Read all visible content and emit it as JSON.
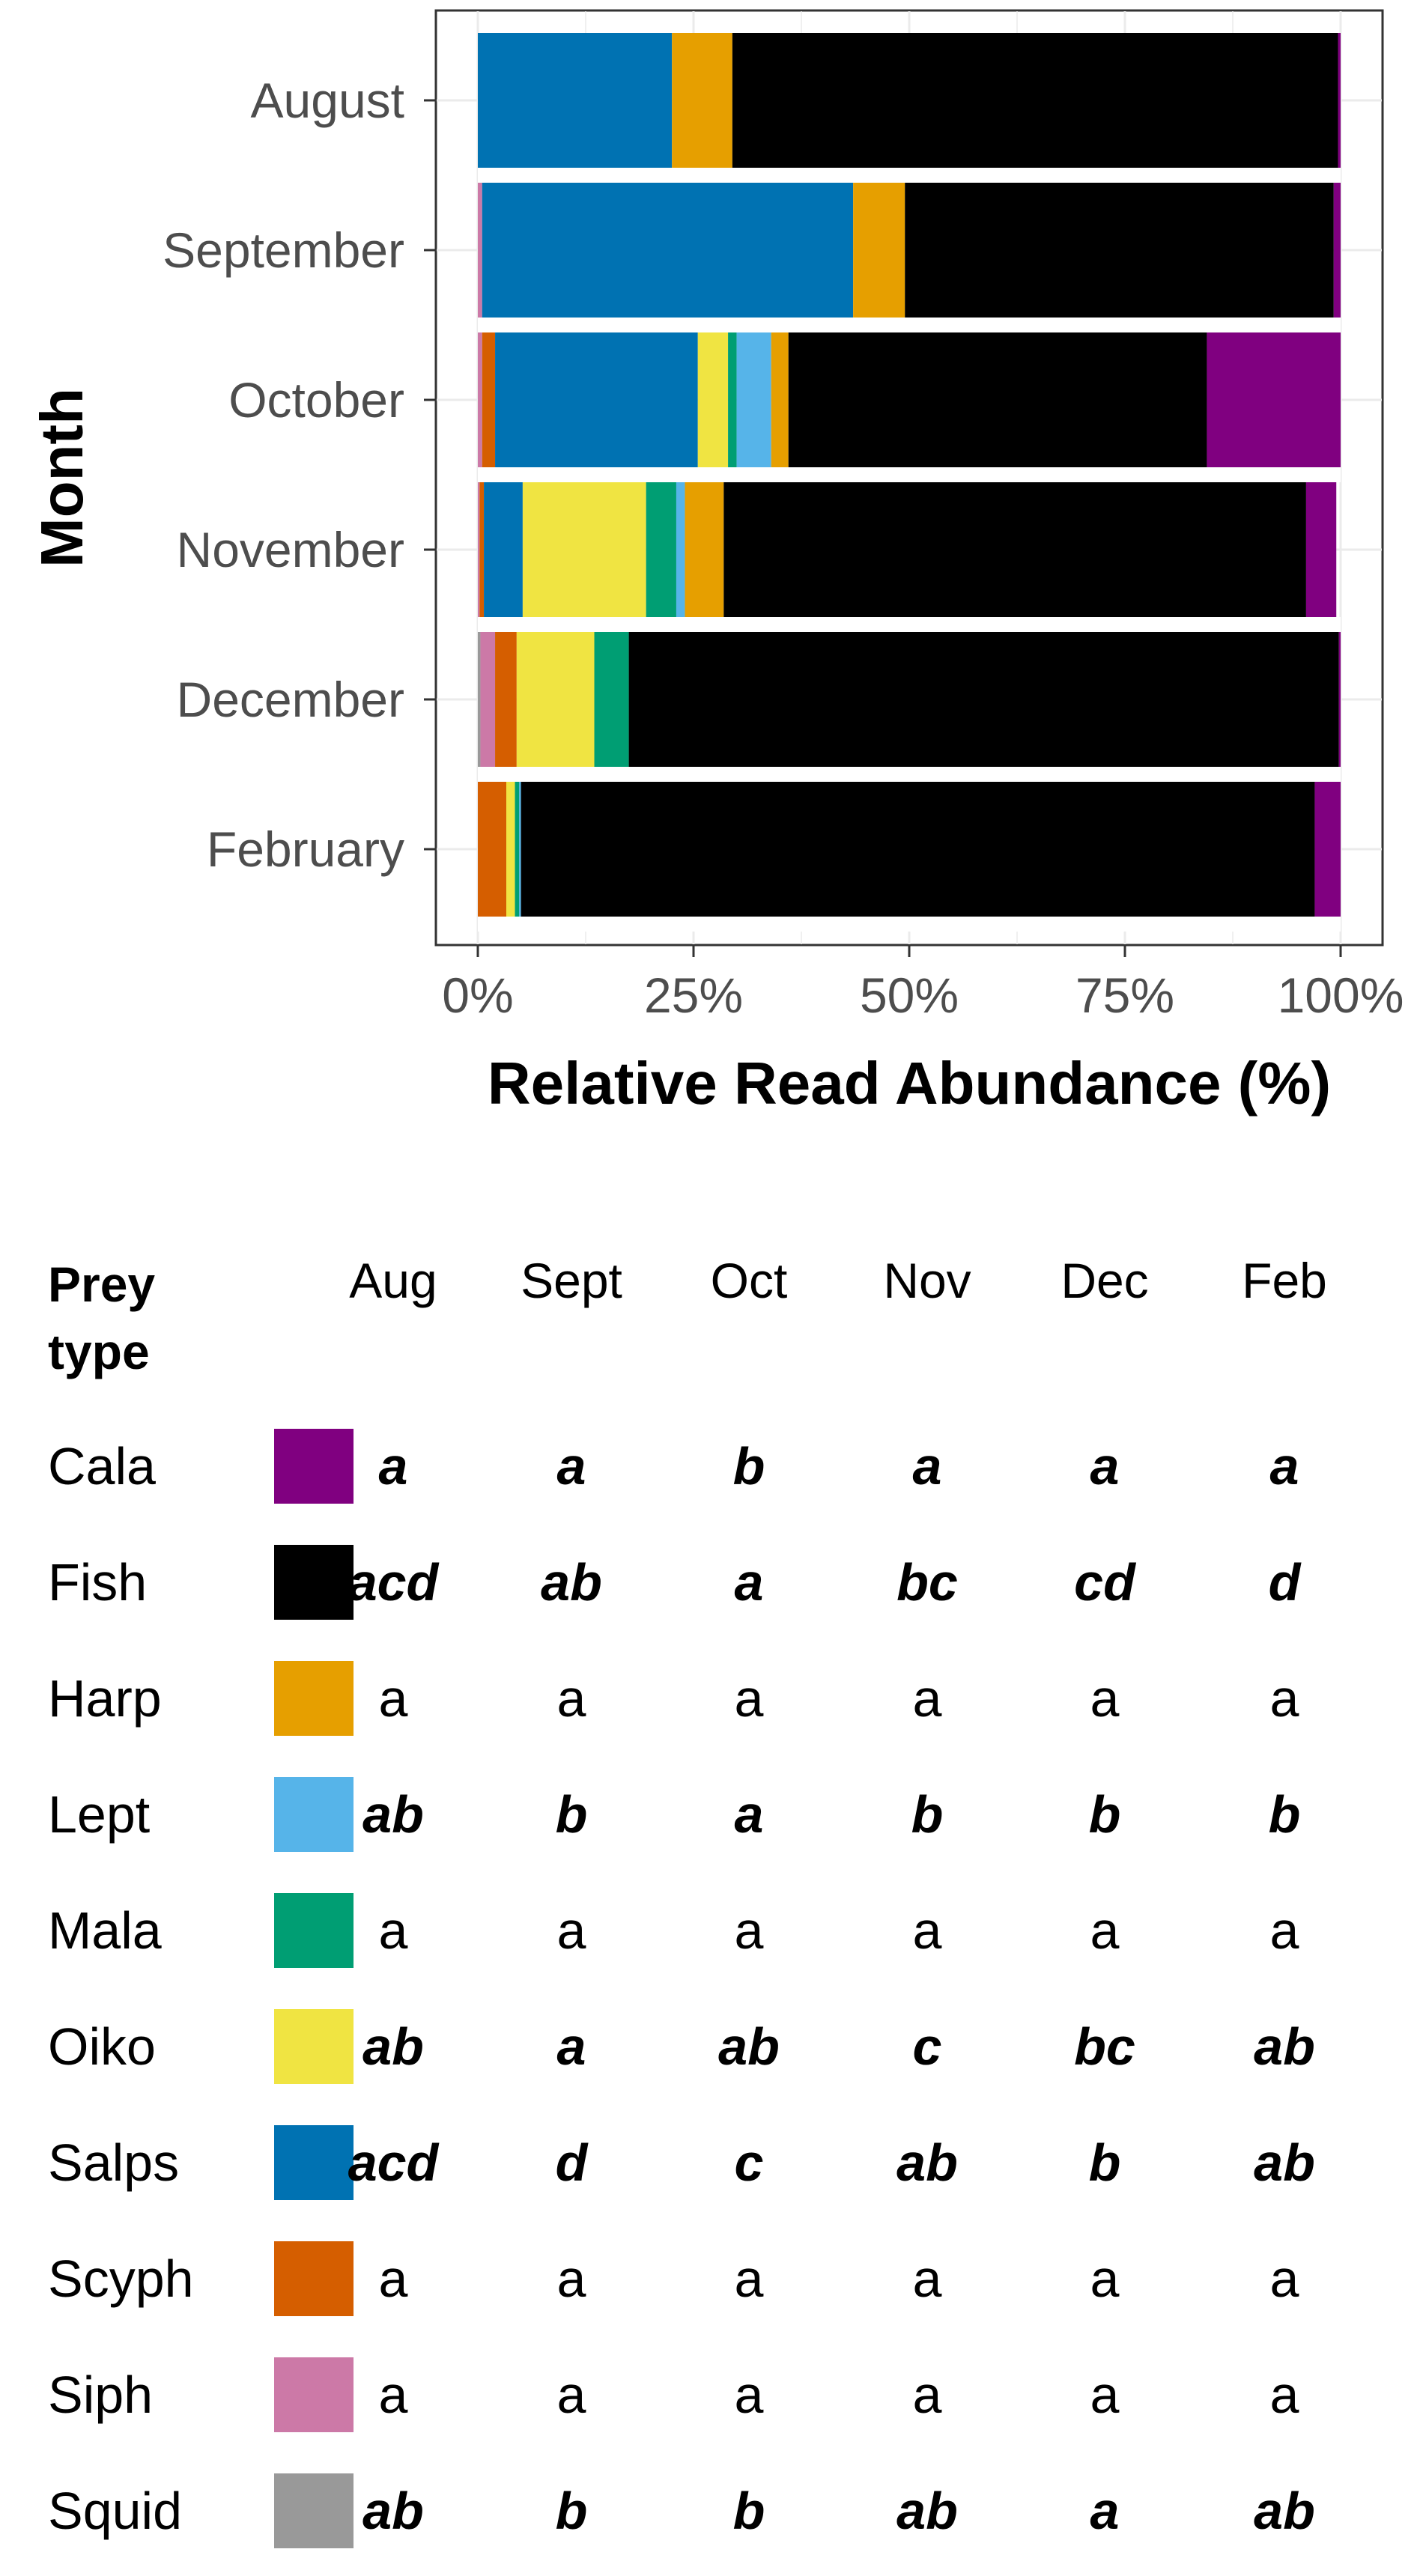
{
  "chart_data": {
    "type": "bar",
    "orientation": "horizontal",
    "stacked": true,
    "title": "",
    "xlabel": "Relative Read Abundance (%)",
    "ylabel": "Month",
    "xlim": [
      0,
      100
    ],
    "xticks": [
      "0%",
      "25%",
      "50%",
      "75%",
      "100%"
    ],
    "grid": true,
    "categories": [
      "August",
      "September",
      "October",
      "November",
      "December",
      "February"
    ],
    "series": [
      {
        "name": "Squid",
        "color": "#999999",
        "values": [
          0,
          0,
          0,
          0,
          0.3,
          0
        ]
      },
      {
        "name": "Siph",
        "color": "#CC79A7",
        "values": [
          0,
          0.5,
          0.5,
          0.2,
          1.7,
          0
        ]
      },
      {
        "name": "Scyph",
        "color": "#D55E00",
        "values": [
          0,
          0,
          1.5,
          0.5,
          2.5,
          3.3
        ]
      },
      {
        "name": "Salps",
        "color": "#0072B2",
        "values": [
          22.5,
          43,
          23.5,
          4.5,
          0,
          0
        ]
      },
      {
        "name": "Oiko",
        "color": "#F0E442",
        "values": [
          0,
          0,
          3.5,
          14.3,
          9,
          1
        ]
      },
      {
        "name": "Mala",
        "color": "#009E73",
        "values": [
          0,
          0,
          1,
          3.5,
          4,
          0.5
        ]
      },
      {
        "name": "Lept",
        "color": "#56B4E9",
        "values": [
          0,
          0,
          4,
          1,
          0,
          0.2
        ]
      },
      {
        "name": "Harp",
        "color": "#E69F00",
        "values": [
          7,
          6,
          2,
          4.5,
          0,
          0
        ]
      },
      {
        "name": "Fish",
        "color": "#000000",
        "values": [
          70.2,
          49.7,
          48.5,
          67.5,
          82.3,
          92
        ]
      },
      {
        "name": "Cala",
        "color": "#800080",
        "values": [
          0.3,
          0.8,
          15.5,
          3.5,
          0.2,
          3
        ]
      }
    ]
  },
  "table": {
    "header_title": "Prey type",
    "columns": [
      "Aug",
      "Sept",
      "Oct",
      "Nov",
      "Dec",
      "Feb"
    ],
    "rows": [
      {
        "prey": "Cala",
        "color": "#800080",
        "significant": true,
        "cells": [
          "a",
          "a",
          "b",
          "a",
          "a",
          "a"
        ]
      },
      {
        "prey": "Fish",
        "color": "#000000",
        "significant": true,
        "cells": [
          "acd",
          "ab",
          "a",
          "bc",
          "cd",
          "d"
        ]
      },
      {
        "prey": "Harp",
        "color": "#E69F00",
        "significant": false,
        "cells": [
          "a",
          "a",
          "a",
          "a",
          "a",
          "a"
        ]
      },
      {
        "prey": "Lept",
        "color": "#56B4E9",
        "significant": true,
        "cells": [
          "ab",
          "b",
          "a",
          "b",
          "b",
          "b"
        ]
      },
      {
        "prey": "Mala",
        "color": "#009E73",
        "significant": false,
        "cells": [
          "a",
          "a",
          "a",
          "a",
          "a",
          "a"
        ]
      },
      {
        "prey": "Oiko",
        "color": "#F0E442",
        "significant": true,
        "cells": [
          "ab",
          "a",
          "ab",
          "c",
          "bc",
          "ab"
        ]
      },
      {
        "prey": "Salps",
        "color": "#0072B2",
        "significant": true,
        "cells": [
          "acd",
          "d",
          "c",
          "ab",
          "b",
          "ab"
        ]
      },
      {
        "prey": "Scyph",
        "color": "#D55E00",
        "significant": false,
        "cells": [
          "a",
          "a",
          "a",
          "a",
          "a",
          "a"
        ]
      },
      {
        "prey": "Siph",
        "color": "#CC79A7",
        "significant": false,
        "cells": [
          "a",
          "a",
          "a",
          "a",
          "a",
          "a"
        ]
      },
      {
        "prey": "Squid",
        "color": "#999999",
        "significant": true,
        "cells": [
          "ab",
          "b",
          "b",
          "ab",
          "a",
          "ab"
        ]
      }
    ]
  }
}
